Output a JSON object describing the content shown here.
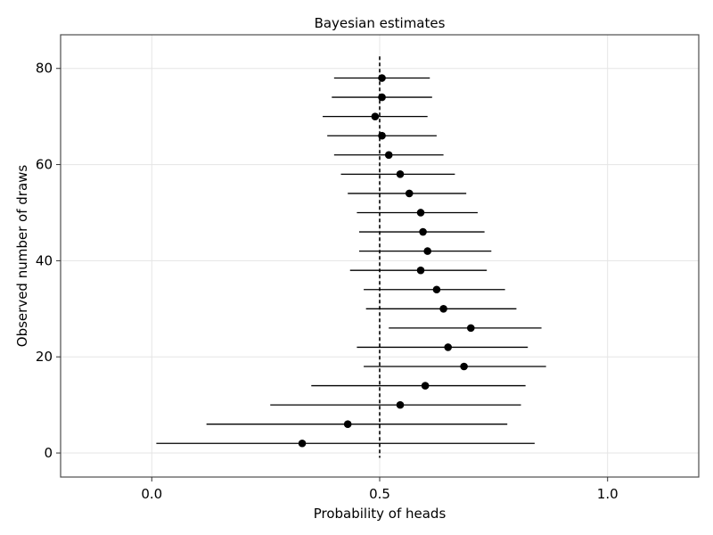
{
  "chart_data": {
    "type": "scatter",
    "title": "Bayesian estimates",
    "xlabel": "Probability of heads",
    "ylabel": "Observed number of draws",
    "xlim": [
      -0.2,
      1.2
    ],
    "ylim": [
      -5,
      87
    ],
    "x_ticks": [
      {
        "value": 0.0,
        "label": "0.0"
      },
      {
        "value": 0.5,
        "label": "0.5"
      },
      {
        "value": 1.0,
        "label": "1.0"
      }
    ],
    "y_ticks": [
      {
        "value": 0,
        "label": "0"
      },
      {
        "value": 20,
        "label": "20"
      },
      {
        "value": 40,
        "label": "40"
      },
      {
        "value": 60,
        "label": "60"
      },
      {
        "value": 80,
        "label": "80"
      }
    ],
    "grid": true,
    "reference_line": {
      "x": 0.5,
      "style": "dashed"
    },
    "points": [
      {
        "y": 2,
        "estimate": 0.33,
        "lower": 0.01,
        "upper": 0.84
      },
      {
        "y": 6,
        "estimate": 0.43,
        "lower": 0.12,
        "upper": 0.78
      },
      {
        "y": 10,
        "estimate": 0.545,
        "lower": 0.26,
        "upper": 0.81
      },
      {
        "y": 14,
        "estimate": 0.6,
        "lower": 0.35,
        "upper": 0.82
      },
      {
        "y": 18,
        "estimate": 0.685,
        "lower": 0.465,
        "upper": 0.865
      },
      {
        "y": 22,
        "estimate": 0.65,
        "lower": 0.45,
        "upper": 0.825
      },
      {
        "y": 26,
        "estimate": 0.7,
        "lower": 0.52,
        "upper": 0.855
      },
      {
        "y": 30,
        "estimate": 0.64,
        "lower": 0.47,
        "upper": 0.8
      },
      {
        "y": 34,
        "estimate": 0.625,
        "lower": 0.465,
        "upper": 0.775
      },
      {
        "y": 38,
        "estimate": 0.59,
        "lower": 0.435,
        "upper": 0.735
      },
      {
        "y": 42,
        "estimate": 0.605,
        "lower": 0.455,
        "upper": 0.745
      },
      {
        "y": 46,
        "estimate": 0.595,
        "lower": 0.455,
        "upper": 0.73
      },
      {
        "y": 50,
        "estimate": 0.59,
        "lower": 0.45,
        "upper": 0.715
      },
      {
        "y": 54,
        "estimate": 0.565,
        "lower": 0.43,
        "upper": 0.69
      },
      {
        "y": 58,
        "estimate": 0.545,
        "lower": 0.415,
        "upper": 0.665
      },
      {
        "y": 62,
        "estimate": 0.52,
        "lower": 0.4,
        "upper": 0.64
      },
      {
        "y": 66,
        "estimate": 0.505,
        "lower": 0.385,
        "upper": 0.625
      },
      {
        "y": 70,
        "estimate": 0.49,
        "lower": 0.375,
        "upper": 0.605
      },
      {
        "y": 74,
        "estimate": 0.505,
        "lower": 0.395,
        "upper": 0.615
      },
      {
        "y": 78,
        "estimate": 0.505,
        "lower": 0.4,
        "upper": 0.61
      }
    ]
  }
}
